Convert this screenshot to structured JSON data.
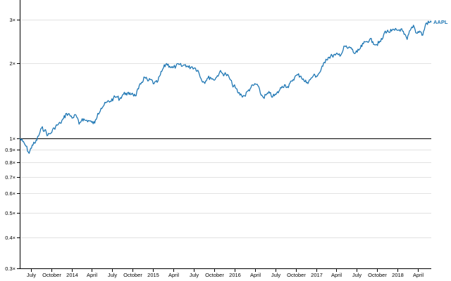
{
  "chart_data": {
    "type": "line",
    "y_scale": "log",
    "ylim": [
      0.3,
      3.6
    ],
    "y_ticks": [
      {
        "value": 0.3,
        "label": "0.3×"
      },
      {
        "value": 0.4,
        "label": "0.4×"
      },
      {
        "value": 0.5,
        "label": "0.5×"
      },
      {
        "value": 0.6,
        "label": "0.6×"
      },
      {
        "value": 0.7,
        "label": "0.7×"
      },
      {
        "value": 0.8,
        "label": "0.8×"
      },
      {
        "value": 0.9,
        "label": "0.9×"
      },
      {
        "value": 1,
        "label": "1×"
      },
      {
        "value": 2,
        "label": "2×"
      },
      {
        "value": 3,
        "label": "3×"
      }
    ],
    "baseline": 1,
    "grid": true,
    "xlim": [
      "2013-05-13",
      "2018-05-31"
    ],
    "x_ticks": [
      {
        "date": "2013-07-01",
        "label": "July"
      },
      {
        "date": "2013-10-01",
        "label": "October"
      },
      {
        "date": "2014-01-01",
        "label": "2014"
      },
      {
        "date": "2014-04-01",
        "label": "April"
      },
      {
        "date": "2014-07-01",
        "label": "July"
      },
      {
        "date": "2014-10-01",
        "label": "October"
      },
      {
        "date": "2015-01-01",
        "label": "2015"
      },
      {
        "date": "2015-04-01",
        "label": "April"
      },
      {
        "date": "2015-07-01",
        "label": "July"
      },
      {
        "date": "2015-10-01",
        "label": "October"
      },
      {
        "date": "2016-01-01",
        "label": "2016"
      },
      {
        "date": "2016-04-01",
        "label": "April"
      },
      {
        "date": "2016-07-01",
        "label": "July"
      },
      {
        "date": "2016-10-01",
        "label": "October"
      },
      {
        "date": "2017-01-01",
        "label": "2017"
      },
      {
        "date": "2017-04-01",
        "label": "April"
      },
      {
        "date": "2017-07-01",
        "label": "July"
      },
      {
        "date": "2017-10-01",
        "label": "October"
      },
      {
        "date": "2018-01-01",
        "label": "2018"
      },
      {
        "date": "2018-04-01",
        "label": "April"
      }
    ],
    "series": [
      {
        "name": "AAPL",
        "color": "#1f77b4",
        "points": [
          [
            "2013-05-13",
            1.0
          ],
          [
            "2013-05-27",
            0.97
          ],
          [
            "2013-06-10",
            0.93
          ],
          [
            "2013-06-24",
            0.87
          ],
          [
            "2013-07-08",
            0.94
          ],
          [
            "2013-07-22",
            0.96
          ],
          [
            "2013-08-05",
            1.02
          ],
          [
            "2013-08-19",
            1.1
          ],
          [
            "2013-09-02",
            1.08
          ],
          [
            "2013-09-16",
            1.03
          ],
          [
            "2013-09-30",
            1.05
          ],
          [
            "2013-10-14",
            1.1
          ],
          [
            "2013-10-28",
            1.13
          ],
          [
            "2013-11-11",
            1.15
          ],
          [
            "2013-11-25",
            1.2
          ],
          [
            "2013-12-09",
            1.26
          ],
          [
            "2013-12-23",
            1.24
          ],
          [
            "2014-01-06",
            1.21
          ],
          [
            "2014-01-20",
            1.24
          ],
          [
            "2014-02-03",
            1.14
          ],
          [
            "2014-02-17",
            1.2
          ],
          [
            "2014-03-03",
            1.18
          ],
          [
            "2014-03-17",
            1.18
          ],
          [
            "2014-03-31",
            1.16
          ],
          [
            "2014-04-14",
            1.15
          ],
          [
            "2014-04-28",
            1.26
          ],
          [
            "2014-05-12",
            1.32
          ],
          [
            "2014-05-26",
            1.36
          ],
          [
            "2014-06-09",
            1.4
          ],
          [
            "2014-06-23",
            1.41
          ],
          [
            "2014-07-07",
            1.45
          ],
          [
            "2014-07-21",
            1.47
          ],
          [
            "2014-08-04",
            1.44
          ],
          [
            "2014-08-18",
            1.5
          ],
          [
            "2014-09-01",
            1.52
          ],
          [
            "2014-09-15",
            1.5
          ],
          [
            "2014-09-29",
            1.52
          ],
          [
            "2014-10-13",
            1.48
          ],
          [
            "2014-10-27",
            1.58
          ],
          [
            "2014-11-10",
            1.68
          ],
          [
            "2014-11-24",
            1.76
          ],
          [
            "2014-12-08",
            1.7
          ],
          [
            "2014-12-22",
            1.72
          ],
          [
            "2015-01-05",
            1.66
          ],
          [
            "2015-01-19",
            1.68
          ],
          [
            "2015-02-02",
            1.8
          ],
          [
            "2015-02-16",
            1.92
          ],
          [
            "2015-03-02",
            2.0
          ],
          [
            "2015-03-16",
            1.95
          ],
          [
            "2015-03-30",
            1.92
          ],
          [
            "2015-04-13",
            1.95
          ],
          [
            "2015-04-27",
            1.98
          ],
          [
            "2015-05-11",
            1.95
          ],
          [
            "2015-05-25",
            1.98
          ],
          [
            "2015-06-08",
            1.93
          ],
          [
            "2015-06-22",
            1.94
          ],
          [
            "2015-07-06",
            1.92
          ],
          [
            "2015-07-20",
            1.88
          ],
          [
            "2015-08-03",
            1.74
          ],
          [
            "2015-08-17",
            1.68
          ],
          [
            "2015-08-31",
            1.74
          ],
          [
            "2015-09-14",
            1.76
          ],
          [
            "2015-09-28",
            1.72
          ],
          [
            "2015-10-12",
            1.76
          ],
          [
            "2015-10-26",
            1.85
          ],
          [
            "2015-11-09",
            1.82
          ],
          [
            "2015-11-23",
            1.81
          ],
          [
            "2015-12-07",
            1.76
          ],
          [
            "2015-12-21",
            1.65
          ],
          [
            "2016-01-04",
            1.6
          ],
          [
            "2016-01-18",
            1.52
          ],
          [
            "2016-02-01",
            1.49
          ],
          [
            "2016-02-15",
            1.48
          ],
          [
            "2016-02-29",
            1.55
          ],
          [
            "2016-03-14",
            1.6
          ],
          [
            "2016-03-28",
            1.64
          ],
          [
            "2016-04-11",
            1.65
          ],
          [
            "2016-04-25",
            1.52
          ],
          [
            "2016-05-09",
            1.46
          ],
          [
            "2016-05-23",
            1.5
          ],
          [
            "2016-06-06",
            1.52
          ],
          [
            "2016-06-20",
            1.47
          ],
          [
            "2016-07-04",
            1.5
          ],
          [
            "2016-07-18",
            1.55
          ],
          [
            "2016-08-01",
            1.62
          ],
          [
            "2016-08-15",
            1.64
          ],
          [
            "2016-08-29",
            1.6
          ],
          [
            "2016-09-12",
            1.7
          ],
          [
            "2016-09-26",
            1.76
          ],
          [
            "2016-10-10",
            1.8
          ],
          [
            "2016-10-24",
            1.78
          ],
          [
            "2016-11-07",
            1.7
          ],
          [
            "2016-11-21",
            1.68
          ],
          [
            "2016-12-05",
            1.72
          ],
          [
            "2016-12-19",
            1.79
          ],
          [
            "2017-01-02",
            1.78
          ],
          [
            "2017-01-16",
            1.84
          ],
          [
            "2017-01-30",
            1.95
          ],
          [
            "2017-02-13",
            2.08
          ],
          [
            "2017-02-27",
            2.12
          ],
          [
            "2017-03-13",
            2.15
          ],
          [
            "2017-03-27",
            2.16
          ],
          [
            "2017-04-10",
            2.17
          ],
          [
            "2017-04-24",
            2.19
          ],
          [
            "2017-05-08",
            2.35
          ],
          [
            "2017-05-22",
            2.3
          ],
          [
            "2017-06-05",
            2.32
          ],
          [
            "2017-06-19",
            2.2
          ],
          [
            "2017-07-03",
            2.22
          ],
          [
            "2017-07-17",
            2.3
          ],
          [
            "2017-07-31",
            2.4
          ],
          [
            "2017-08-14",
            2.45
          ],
          [
            "2017-08-28",
            2.5
          ],
          [
            "2017-09-11",
            2.45
          ],
          [
            "2017-09-25",
            2.38
          ],
          [
            "2017-10-09",
            2.42
          ],
          [
            "2017-10-23",
            2.5
          ],
          [
            "2017-11-06",
            2.7
          ],
          [
            "2017-11-20",
            2.68
          ],
          [
            "2017-12-04",
            2.7
          ],
          [
            "2017-12-18",
            2.72
          ],
          [
            "2018-01-01",
            2.72
          ],
          [
            "2018-01-15",
            2.75
          ],
          [
            "2018-01-29",
            2.62
          ],
          [
            "2018-02-12",
            2.5
          ],
          [
            "2018-02-26",
            2.72
          ],
          [
            "2018-03-12",
            2.85
          ],
          [
            "2018-03-26",
            2.65
          ],
          [
            "2018-04-09",
            2.7
          ],
          [
            "2018-04-23",
            2.6
          ],
          [
            "2018-05-07",
            2.9
          ],
          [
            "2018-05-21",
            2.92
          ],
          [
            "2018-05-31",
            2.93
          ]
        ]
      }
    ]
  }
}
